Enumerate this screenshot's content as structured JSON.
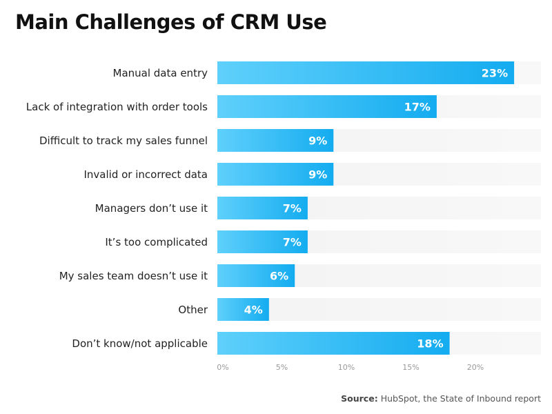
{
  "chart_data": {
    "type": "bar",
    "orientation": "horizontal",
    "title": "Main Challenges of CRM Use",
    "categories": [
      "Manual data entry",
      "Lack of integration with order tools",
      "Difficult to track my sales funnel",
      "Invalid or incorrect data",
      "Managers don’t use it",
      "It’s too complicated",
      "My sales team doesn’t use it",
      "Other",
      "Don’t know/not applicable"
    ],
    "values": [
      23,
      17,
      9,
      9,
      7,
      7,
      6,
      4,
      18
    ],
    "value_labels": [
      "23%",
      "17%",
      "9%",
      "9%",
      "7%",
      "7%",
      "6%",
      "4%",
      "18%"
    ],
    "xticks": [
      0,
      5,
      10,
      15,
      20
    ],
    "xtick_labels": [
      "0%",
      "5%",
      "10%",
      "15%",
      "20%"
    ],
    "xlim": [
      0,
      25
    ],
    "xlabel": "",
    "ylabel": "",
    "grid": false,
    "legend": "none",
    "colors": {
      "bar_start": "#5fd0fb",
      "bar_end": "#14acf0",
      "track": "#f3f3f3"
    }
  },
  "source": {
    "label": "Source:",
    "text": "HubSpot, the State of Inbound report"
  }
}
